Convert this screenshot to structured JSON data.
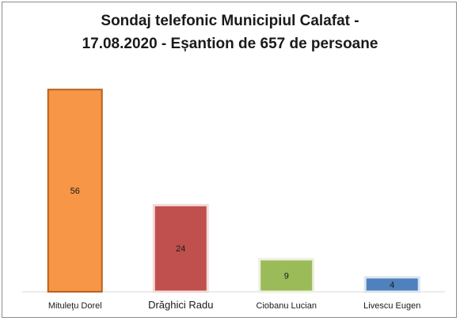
{
  "chart_data": {
    "type": "bar",
    "title": "Sondaj telefonic Municipiul Calafat - 17.08.2020 - Eșantion de 657 de persoane",
    "title_lines": [
      "Sondaj telefonic Municipiul Calafat -",
      "17.08.2020 - Eșantion de 657 de persoane"
    ],
    "categories": [
      "Mituleţu Dorel",
      "Drăghici Radu",
      "Ciobanu Lucian",
      "Livescu Eugen"
    ],
    "values": [
      56,
      24,
      9,
      4
    ],
    "colors": [
      "#f79646",
      "#c0504d",
      "#9bbb59",
      "#4f81bd"
    ],
    "border_colors": [
      "#b8601f",
      "#f2dcdb",
      "#ebf1de",
      "#dbe5f1"
    ],
    "data_labels": [
      "56",
      "24",
      "9",
      "4"
    ],
    "xlabel": "",
    "ylabel": "",
    "ylim": [
      0,
      60
    ],
    "grid": false,
    "legend": "none"
  }
}
